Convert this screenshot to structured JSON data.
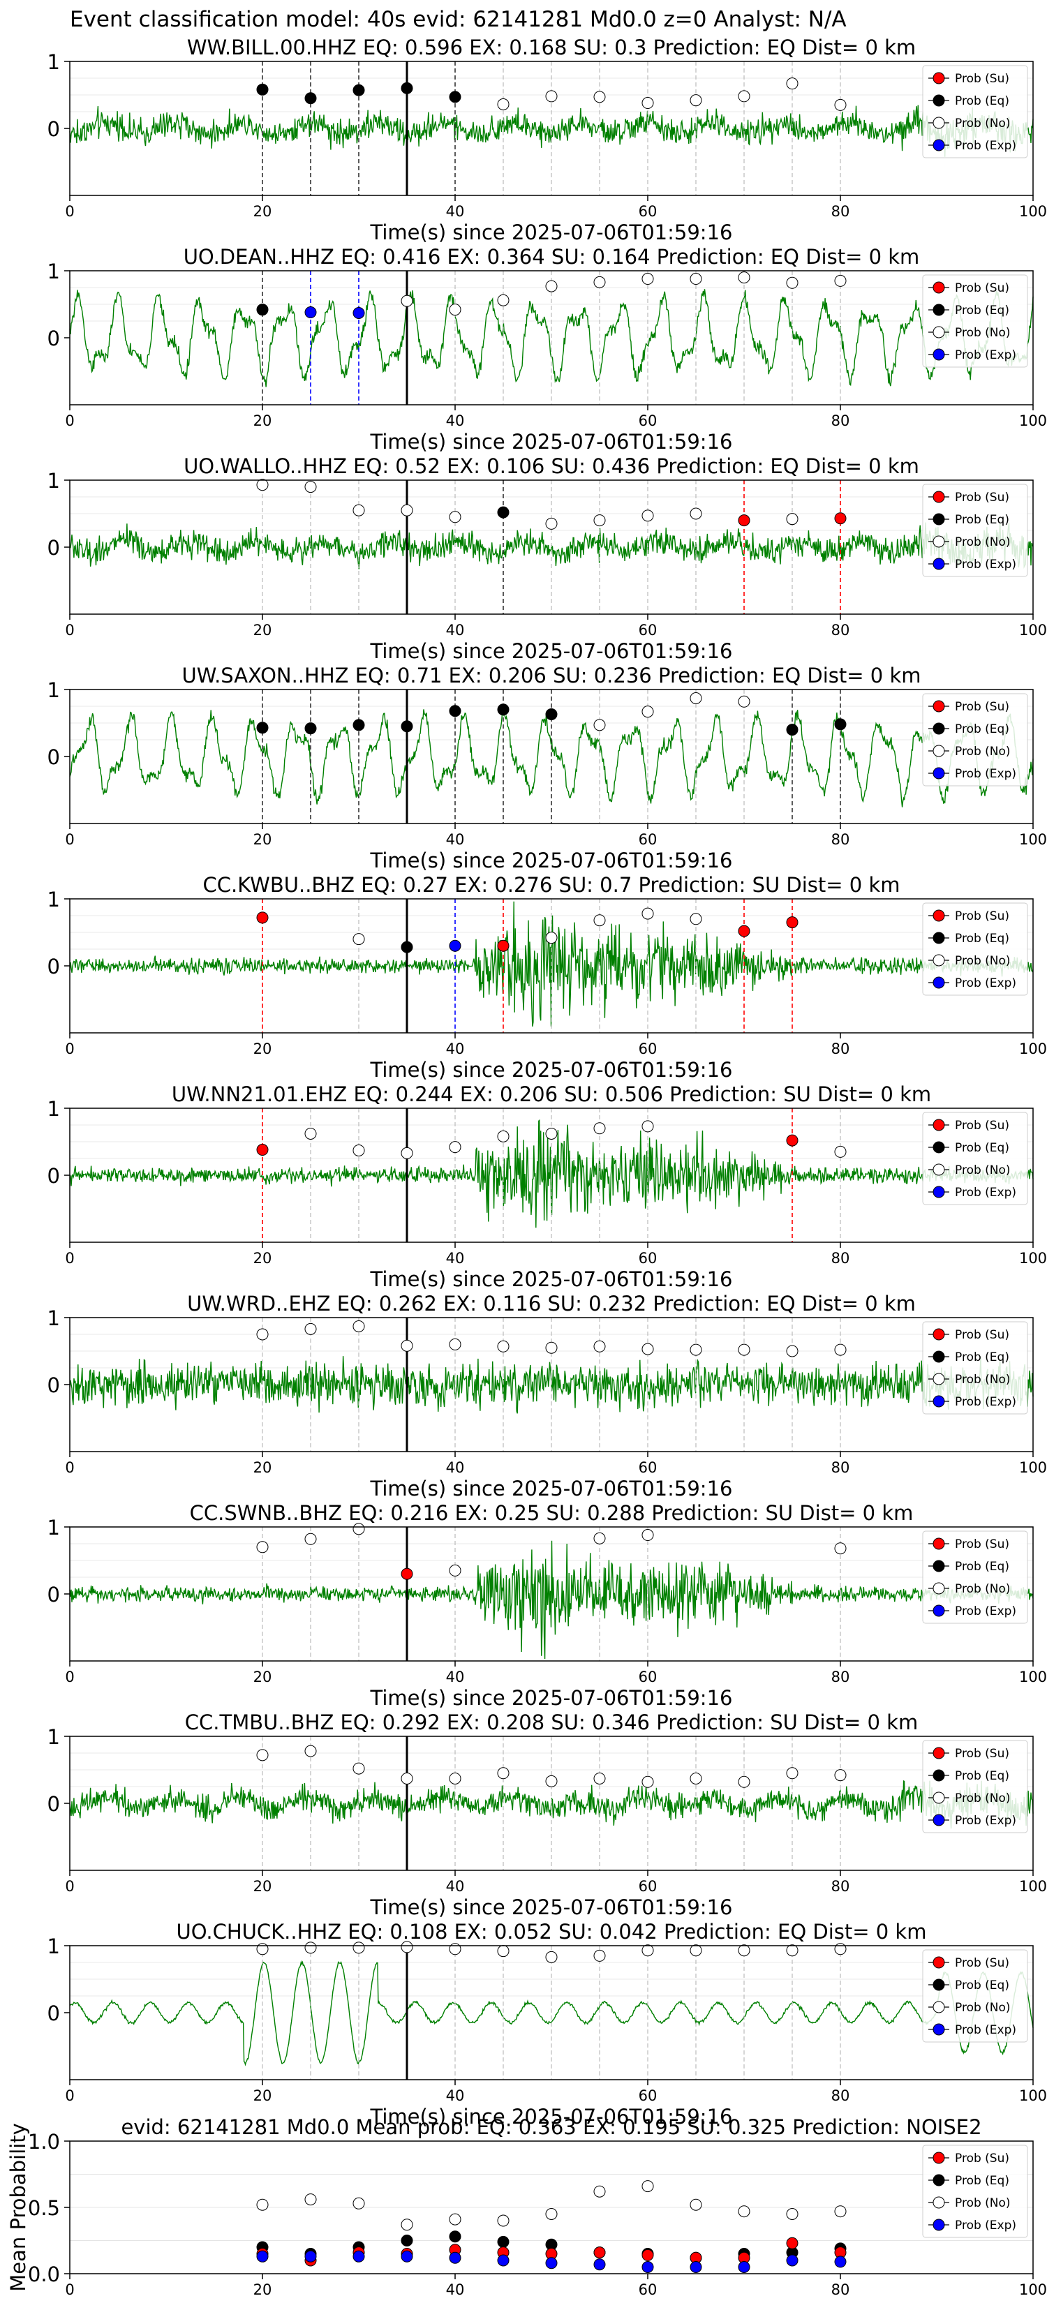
{
  "suptitle": "Event classification model: 40s evid: 62141281 Md0.0 z=0 Analyst: N/A",
  "legend_labels": [
    "Prob (Su)",
    "Prob (Eq)",
    "Prob (No)",
    "Prob (Exp)"
  ],
  "colors": {
    "waveform": "#008000",
    "su": "#ff0000",
    "eq": "#000000",
    "no": "#ffffff",
    "exp": "#0000ff",
    "pick_line": "#000000"
  },
  "chart_data": [
    {
      "type": "line",
      "title": "WW.BILL.00.HHZ   EQ: 0.596  EX: 0.168  SU: 0.3   Prediction: EQ    Dist= 0 km",
      "xlabel": "Time(s) since 2025-07-06T01:59:16",
      "xlim": [
        0,
        100
      ],
      "ylim": [
        -1,
        1
      ],
      "xticks": [
        "0",
        "20",
        "40",
        "60",
        "80",
        "100"
      ],
      "yticks": [
        "0",
        "1"
      ],
      "pick_time": 35,
      "waveform_character": "noise",
      "points": [
        {
          "x": 20,
          "p": 0.58,
          "cls": "eq"
        },
        {
          "x": 25,
          "p": 0.45,
          "cls": "eq"
        },
        {
          "x": 30,
          "p": 0.57,
          "cls": "eq"
        },
        {
          "x": 35,
          "p": 0.6,
          "cls": "eq"
        },
        {
          "x": 40,
          "p": 0.47,
          "cls": "eq"
        },
        {
          "x": 45,
          "p": 0.36,
          "cls": "no"
        },
        {
          "x": 50,
          "p": 0.48,
          "cls": "no"
        },
        {
          "x": 55,
          "p": 0.47,
          "cls": "no"
        },
        {
          "x": 60,
          "p": 0.38,
          "cls": "no"
        },
        {
          "x": 65,
          "p": 0.42,
          "cls": "no"
        },
        {
          "x": 70,
          "p": 0.48,
          "cls": "no"
        },
        {
          "x": 75,
          "p": 0.67,
          "cls": "no"
        },
        {
          "x": 80,
          "p": 0.35,
          "cls": "no"
        }
      ]
    },
    {
      "type": "line",
      "title": "UO.DEAN..HHZ   EQ: 0.416  EX: 0.364  SU: 0.164   Prediction: EQ    Dist= 0 km",
      "xlabel": "Time(s) since 2025-07-06T01:59:16",
      "xlim": [
        0,
        100
      ],
      "ylim": [
        -1,
        1
      ],
      "xticks": [
        "0",
        "20",
        "40",
        "60",
        "80",
        "100"
      ],
      "yticks": [
        "0",
        "1"
      ],
      "pick_time": 35,
      "waveform_character": "oscillatory",
      "points": [
        {
          "x": 20,
          "p": 0.42,
          "cls": "eq"
        },
        {
          "x": 25,
          "p": 0.38,
          "cls": "exp"
        },
        {
          "x": 30,
          "p": 0.37,
          "cls": "exp"
        },
        {
          "x": 35,
          "p": 0.55,
          "cls": "no"
        },
        {
          "x": 40,
          "p": 0.42,
          "cls": "no"
        },
        {
          "x": 45,
          "p": 0.56,
          "cls": "no"
        },
        {
          "x": 50,
          "p": 0.77,
          "cls": "no"
        },
        {
          "x": 55,
          "p": 0.83,
          "cls": "no"
        },
        {
          "x": 60,
          "p": 0.88,
          "cls": "no"
        },
        {
          "x": 65,
          "p": 0.88,
          "cls": "no"
        },
        {
          "x": 70,
          "p": 0.9,
          "cls": "no"
        },
        {
          "x": 75,
          "p": 0.82,
          "cls": "no"
        },
        {
          "x": 80,
          "p": 0.85,
          "cls": "no"
        }
      ]
    },
    {
      "type": "line",
      "title": "UO.WALLO..HHZ   EQ: 0.52  EX: 0.106  SU: 0.436   Prediction: EQ    Dist= 0 km",
      "xlabel": "Time(s) since 2025-07-06T01:59:16",
      "xlim": [
        0,
        100
      ],
      "ylim": [
        -1,
        1
      ],
      "xticks": [
        "0",
        "20",
        "40",
        "60",
        "80",
        "100"
      ],
      "yticks": [
        "0",
        "1"
      ],
      "pick_time": 35,
      "waveform_character": "noise",
      "points": [
        {
          "x": 20,
          "p": 0.93,
          "cls": "no"
        },
        {
          "x": 25,
          "p": 0.9,
          "cls": "no"
        },
        {
          "x": 30,
          "p": 0.55,
          "cls": "no"
        },
        {
          "x": 35,
          "p": 0.55,
          "cls": "no"
        },
        {
          "x": 40,
          "p": 0.45,
          "cls": "no"
        },
        {
          "x": 45,
          "p": 0.52,
          "cls": "eq"
        },
        {
          "x": 50,
          "p": 0.35,
          "cls": "no"
        },
        {
          "x": 55,
          "p": 0.4,
          "cls": "no"
        },
        {
          "x": 60,
          "p": 0.47,
          "cls": "no"
        },
        {
          "x": 65,
          "p": 0.5,
          "cls": "no"
        },
        {
          "x": 70,
          "p": 0.4,
          "cls": "su"
        },
        {
          "x": 75,
          "p": 0.42,
          "cls": "no"
        },
        {
          "x": 80,
          "p": 0.43,
          "cls": "su"
        }
      ]
    },
    {
      "type": "line",
      "title": "UW.SAXON..HHZ   EQ: 0.71  EX: 0.206  SU: 0.236   Prediction: EQ    Dist= 0 km",
      "xlabel": "Time(s) since 2025-07-06T01:59:16",
      "xlim": [
        0,
        100
      ],
      "ylim": [
        -1,
        1
      ],
      "xticks": [
        "0",
        "20",
        "40",
        "60",
        "80",
        "100"
      ],
      "yticks": [
        "0",
        "1"
      ],
      "pick_time": 35,
      "waveform_character": "oscillatory",
      "points": [
        {
          "x": 20,
          "p": 0.43,
          "cls": "eq"
        },
        {
          "x": 25,
          "p": 0.42,
          "cls": "eq"
        },
        {
          "x": 30,
          "p": 0.47,
          "cls": "eq"
        },
        {
          "x": 35,
          "p": 0.45,
          "cls": "eq"
        },
        {
          "x": 40,
          "p": 0.68,
          "cls": "eq"
        },
        {
          "x": 45,
          "p": 0.7,
          "cls": "eq"
        },
        {
          "x": 50,
          "p": 0.63,
          "cls": "eq"
        },
        {
          "x": 55,
          "p": 0.47,
          "cls": "no"
        },
        {
          "x": 60,
          "p": 0.67,
          "cls": "no"
        },
        {
          "x": 65,
          "p": 0.87,
          "cls": "no"
        },
        {
          "x": 70,
          "p": 0.82,
          "cls": "no"
        },
        {
          "x": 75,
          "p": 0.4,
          "cls": "eq"
        },
        {
          "x": 80,
          "p": 0.48,
          "cls": "eq"
        }
      ]
    },
    {
      "type": "line",
      "title": "CC.KWBU..BHZ   EQ: 0.27  EX: 0.276  SU: 0.7   Prediction: SU    Dist= 0 km",
      "xlabel": "Time(s) since 2025-07-06T01:59:16",
      "xlim": [
        0,
        100
      ],
      "ylim": [
        -1,
        1
      ],
      "xticks": [
        "0",
        "20",
        "40",
        "60",
        "80",
        "100"
      ],
      "yticks": [
        "0",
        "1"
      ],
      "pick_time": 35,
      "waveform_character": "burst",
      "points": [
        {
          "x": 20,
          "p": 0.72,
          "cls": "su"
        },
        {
          "x": 30,
          "p": 0.4,
          "cls": "no"
        },
        {
          "x": 35,
          "p": 0.28,
          "cls": "eq"
        },
        {
          "x": 40,
          "p": 0.3,
          "cls": "exp"
        },
        {
          "x": 45,
          "p": 0.3,
          "cls": "su"
        },
        {
          "x": 50,
          "p": 0.42,
          "cls": "no"
        },
        {
          "x": 55,
          "p": 0.68,
          "cls": "no"
        },
        {
          "x": 60,
          "p": 0.78,
          "cls": "no"
        },
        {
          "x": 65,
          "p": 0.7,
          "cls": "no"
        },
        {
          "x": 70,
          "p": 0.52,
          "cls": "su"
        },
        {
          "x": 75,
          "p": 0.65,
          "cls": "su"
        }
      ]
    },
    {
      "type": "line",
      "title": "UW.NN21.01.EHZ   EQ: 0.244  EX: 0.206  SU: 0.506   Prediction: SU    Dist= 0 km",
      "xlabel": "Time(s) since 2025-07-06T01:59:16",
      "xlim": [
        0,
        100
      ],
      "ylim": [
        -1,
        1
      ],
      "xticks": [
        "0",
        "20",
        "40",
        "60",
        "80",
        "100"
      ],
      "yticks": [
        "0",
        "1"
      ],
      "pick_time": 35,
      "waveform_character": "burst",
      "points": [
        {
          "x": 20,
          "p": 0.38,
          "cls": "su"
        },
        {
          "x": 25,
          "p": 0.62,
          "cls": "no"
        },
        {
          "x": 30,
          "p": 0.37,
          "cls": "no"
        },
        {
          "x": 35,
          "p": 0.33,
          "cls": "no"
        },
        {
          "x": 40,
          "p": 0.42,
          "cls": "no"
        },
        {
          "x": 45,
          "p": 0.58,
          "cls": "no"
        },
        {
          "x": 50,
          "p": 0.62,
          "cls": "no"
        },
        {
          "x": 55,
          "p": 0.7,
          "cls": "no"
        },
        {
          "x": 60,
          "p": 0.73,
          "cls": "no"
        },
        {
          "x": 75,
          "p": 0.52,
          "cls": "su"
        },
        {
          "x": 80,
          "p": 0.35,
          "cls": "no"
        }
      ]
    },
    {
      "type": "line",
      "title": "UW.WRD..EHZ   EQ: 0.262  EX: 0.116  SU: 0.232   Prediction: EQ    Dist= 0 km",
      "xlabel": "Time(s) since 2025-07-06T01:59:16",
      "xlim": [
        0,
        100
      ],
      "ylim": [
        -1,
        1
      ],
      "xticks": [
        "0",
        "20",
        "40",
        "60",
        "80",
        "100"
      ],
      "yticks": [
        "0",
        "1"
      ],
      "pick_time": 35,
      "waveform_character": "dense-noise",
      "points": [
        {
          "x": 20,
          "p": 0.75,
          "cls": "no"
        },
        {
          "x": 25,
          "p": 0.83,
          "cls": "no"
        },
        {
          "x": 30,
          "p": 0.87,
          "cls": "no"
        },
        {
          "x": 35,
          "p": 0.58,
          "cls": "no"
        },
        {
          "x": 40,
          "p": 0.6,
          "cls": "no"
        },
        {
          "x": 45,
          "p": 0.57,
          "cls": "no"
        },
        {
          "x": 50,
          "p": 0.55,
          "cls": "no"
        },
        {
          "x": 55,
          "p": 0.57,
          "cls": "no"
        },
        {
          "x": 60,
          "p": 0.53,
          "cls": "no"
        },
        {
          "x": 65,
          "p": 0.52,
          "cls": "no"
        },
        {
          "x": 70,
          "p": 0.52,
          "cls": "no"
        },
        {
          "x": 75,
          "p": 0.5,
          "cls": "no"
        },
        {
          "x": 80,
          "p": 0.52,
          "cls": "no"
        }
      ]
    },
    {
      "type": "line",
      "title": "CC.SWNB..BHZ   EQ: 0.216  EX: 0.25  SU: 0.288   Prediction: SU    Dist= 0 km",
      "xlabel": "Time(s) since 2025-07-06T01:59:16",
      "xlim": [
        0,
        100
      ],
      "ylim": [
        -1,
        1
      ],
      "xticks": [
        "0",
        "20",
        "40",
        "60",
        "80",
        "100"
      ],
      "yticks": [
        "0",
        "1"
      ],
      "pick_time": 35,
      "waveform_character": "burst",
      "points": [
        {
          "x": 20,
          "p": 0.7,
          "cls": "no"
        },
        {
          "x": 25,
          "p": 0.82,
          "cls": "no"
        },
        {
          "x": 30,
          "p": 0.97,
          "cls": "no"
        },
        {
          "x": 35,
          "p": 0.3,
          "cls": "su"
        },
        {
          "x": 40,
          "p": 0.35,
          "cls": "no"
        },
        {
          "x": 55,
          "p": 0.83,
          "cls": "no"
        },
        {
          "x": 60,
          "p": 0.88,
          "cls": "no"
        },
        {
          "x": 80,
          "p": 0.68,
          "cls": "no"
        }
      ]
    },
    {
      "type": "line",
      "title": "CC.TMBU..BHZ   EQ: 0.292  EX: 0.208  SU: 0.346   Prediction: SU    Dist= 0 km",
      "xlabel": "Time(s) since 2025-07-06T01:59:16",
      "xlim": [
        0,
        100
      ],
      "ylim": [
        -1,
        1
      ],
      "xticks": [
        "0",
        "20",
        "40",
        "60",
        "80",
        "100"
      ],
      "yticks": [
        "0",
        "1"
      ],
      "pick_time": 35,
      "waveform_character": "noise",
      "points": [
        {
          "x": 20,
          "p": 0.72,
          "cls": "no"
        },
        {
          "x": 25,
          "p": 0.78,
          "cls": "no"
        },
        {
          "x": 30,
          "p": 0.52,
          "cls": "no"
        },
        {
          "x": 35,
          "p": 0.37,
          "cls": "no"
        },
        {
          "x": 40,
          "p": 0.37,
          "cls": "no"
        },
        {
          "x": 45,
          "p": 0.45,
          "cls": "no"
        },
        {
          "x": 50,
          "p": 0.33,
          "cls": "no"
        },
        {
          "x": 55,
          "p": 0.37,
          "cls": "no"
        },
        {
          "x": 60,
          "p": 0.32,
          "cls": "no"
        },
        {
          "x": 65,
          "p": 0.37,
          "cls": "no"
        },
        {
          "x": 70,
          "p": 0.32,
          "cls": "no"
        },
        {
          "x": 75,
          "p": 0.45,
          "cls": "no"
        },
        {
          "x": 80,
          "p": 0.42,
          "cls": "no"
        }
      ]
    },
    {
      "type": "line",
      "title": "UO.CHUCK..HHZ   EQ: 0.108  EX: 0.052  SU: 0.042   Prediction: EQ    Dist= 0 km",
      "xlabel": "Time(s) since 2025-07-06T01:59:16",
      "xlim": [
        0,
        100
      ],
      "ylim": [
        -1,
        1
      ],
      "xticks": [
        "0",
        "20",
        "40",
        "60",
        "80",
        "100"
      ],
      "yticks": [
        "0",
        "1"
      ],
      "pick_time": 35,
      "waveform_character": "low-frequency",
      "points": [
        {
          "x": 20,
          "p": 0.95,
          "cls": "no"
        },
        {
          "x": 25,
          "p": 0.97,
          "cls": "no"
        },
        {
          "x": 30,
          "p": 0.97,
          "cls": "no"
        },
        {
          "x": 35,
          "p": 0.98,
          "cls": "no"
        },
        {
          "x": 40,
          "p": 0.95,
          "cls": "no"
        },
        {
          "x": 45,
          "p": 0.92,
          "cls": "no"
        },
        {
          "x": 50,
          "p": 0.83,
          "cls": "no"
        },
        {
          "x": 55,
          "p": 0.85,
          "cls": "no"
        },
        {
          "x": 60,
          "p": 0.93,
          "cls": "no"
        },
        {
          "x": 65,
          "p": 0.93,
          "cls": "no"
        },
        {
          "x": 70,
          "p": 0.93,
          "cls": "no"
        },
        {
          "x": 75,
          "p": 0.93,
          "cls": "no"
        },
        {
          "x": 80,
          "p": 0.95,
          "cls": "no"
        }
      ]
    },
    {
      "type": "scatter",
      "title": "evid: 62141281  Md0.0   Mean prob:   EQ: 0.363  EX: 0.195  SU: 0.325   Prediction: NOISE2",
      "ylabel": "Mean Probability",
      "xlim": [
        0,
        100
      ],
      "ylim": [
        0,
        1
      ],
      "xticks": [
        "0",
        "20",
        "40",
        "60",
        "80",
        "100"
      ],
      "yticks": [
        "0.0",
        "0.5",
        "1.0"
      ],
      "x": [
        20,
        25,
        30,
        35,
        40,
        45,
        50,
        55,
        60,
        65,
        70,
        75,
        80
      ],
      "series": [
        {
          "cls": "no",
          "values": [
            0.52,
            0.56,
            0.53,
            0.37,
            0.41,
            0.4,
            0.45,
            0.62,
            0.66,
            0.52,
            0.47,
            0.45,
            0.47
          ]
        },
        {
          "cls": "eq",
          "values": [
            0.2,
            0.15,
            0.2,
            0.25,
            0.28,
            0.24,
            0.22,
            0.16,
            0.15,
            0.12,
            0.15,
            0.16,
            0.19
          ]
        },
        {
          "cls": "su",
          "values": [
            0.15,
            0.1,
            0.16,
            0.15,
            0.18,
            0.16,
            0.15,
            0.16,
            0.14,
            0.12,
            0.12,
            0.23,
            0.16
          ]
        },
        {
          "cls": "exp",
          "values": [
            0.13,
            0.13,
            0.13,
            0.13,
            0.12,
            0.1,
            0.08,
            0.07,
            0.05,
            0.05,
            0.05,
            0.1,
            0.09
          ]
        }
      ]
    }
  ]
}
